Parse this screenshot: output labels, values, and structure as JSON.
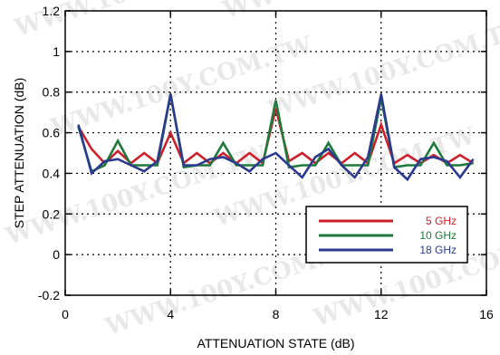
{
  "chart_data": {
    "type": "line",
    "xlabel": "ATTENUATION STATE (dB)",
    "ylabel": "STEP ATTENUATION (dB)",
    "xlim": [
      0,
      16
    ],
    "ylim": [
      -0.2,
      1.2
    ],
    "x_ticks": [
      0,
      4,
      8,
      12,
      16
    ],
    "y_ticks": [
      -0.2,
      0,
      0.2,
      0.4,
      0.6,
      0.8,
      1,
      1.2
    ],
    "x_tick_labels": [
      "0",
      "4",
      "8",
      "12",
      "16"
    ],
    "y_tick_labels": [
      "-0.2",
      "0",
      "0.2",
      "0.4",
      "0.6",
      "0.8",
      "1",
      "1.2"
    ],
    "grid": true,
    "grid_style": "dotted",
    "legend_position": "bottom-right",
    "x": [
      0.5,
      1,
      1.5,
      2,
      2.5,
      3,
      3.5,
      4,
      4.5,
      5,
      5.5,
      6,
      6.5,
      7,
      7.5,
      8,
      8.5,
      9,
      9.5,
      10,
      10.5,
      11,
      11.5,
      12,
      12.5,
      13,
      13.5,
      14,
      14.5,
      15,
      15.5
    ],
    "series": [
      {
        "name": "5 GHz",
        "color": "#cc1f2b",
        "values": [
          0.63,
          0.52,
          0.45,
          0.51,
          0.45,
          0.5,
          0.45,
          0.6,
          0.45,
          0.5,
          0.45,
          0.5,
          0.45,
          0.5,
          0.45,
          0.72,
          0.46,
          0.5,
          0.45,
          0.5,
          0.45,
          0.5,
          0.45,
          0.64,
          0.45,
          0.49,
          0.45,
          0.49,
          0.45,
          0.49,
          0.45
        ]
      },
      {
        "name": "10 GHz",
        "color": "#1e7a3a",
        "values": [
          0.63,
          0.41,
          0.44,
          0.56,
          0.44,
          0.44,
          0.44,
          0.79,
          0.43,
          0.44,
          0.44,
          0.55,
          0.44,
          0.44,
          0.44,
          0.76,
          0.43,
          0.44,
          0.44,
          0.55,
          0.44,
          0.44,
          0.44,
          0.77,
          0.43,
          0.44,
          0.44,
          0.55,
          0.44,
          0.44,
          0.45
        ]
      },
      {
        "name": "18 GHz",
        "color": "#2b3a8f",
        "values": [
          0.64,
          0.4,
          0.46,
          0.47,
          0.44,
          0.41,
          0.46,
          0.79,
          0.44,
          0.44,
          0.47,
          0.48,
          0.45,
          0.41,
          0.47,
          0.5,
          0.44,
          0.38,
          0.48,
          0.52,
          0.44,
          0.38,
          0.48,
          0.79,
          0.43,
          0.37,
          0.47,
          0.48,
          0.46,
          0.38,
          0.47
        ]
      }
    ]
  },
  "watermark": {
    "text": "WWW.100Y.COM.TW",
    "color": "#e8e8e8"
  }
}
